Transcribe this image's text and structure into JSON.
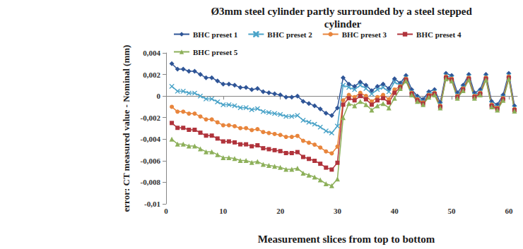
{
  "chart_data": {
    "type": "line",
    "title": "Ø3mm steel cylinder partly surrounded by a steel stepped cylinder",
    "x_label": "Measurement slices from top to bottom",
    "y_label": "error: CT measured value - Nominal (mm)",
    "x": [
      1,
      2,
      3,
      4,
      5,
      6,
      7,
      8,
      9,
      10,
      11,
      12,
      13,
      14,
      15,
      16,
      17,
      18,
      19,
      20,
      21,
      22,
      23,
      24,
      25,
      26,
      27,
      28,
      29,
      30,
      31,
      32,
      33,
      34,
      35,
      36,
      37,
      38,
      39,
      40,
      41,
      42,
      43,
      44,
      45,
      46,
      47,
      48,
      49,
      50,
      51,
      52,
      53,
      54,
      55,
      56,
      57,
      58,
      59,
      60,
      61
    ],
    "xlim": [
      0,
      61.5
    ],
    "xticks": [
      0,
      10,
      20,
      30,
      40,
      50,
      60
    ],
    "ylim": [
      -0.01,
      0.004
    ],
    "yticks": [
      {
        "value": -0.01,
        "label": "-0,01"
      },
      {
        "value": -0.008,
        "label": "-0,008"
      },
      {
        "value": -0.006,
        "label": "-0,006"
      },
      {
        "value": -0.004,
        "label": "-0,004"
      },
      {
        "value": -0.002,
        "label": "-0,002"
      },
      0,
      {
        "value": 0.002,
        "label": "0,002"
      },
      {
        "value": 0.004,
        "label": "0,004"
      }
    ],
    "grid": false,
    "legend": "top",
    "series": [
      {
        "name": "BHC preset 1",
        "color": "#2f5597",
        "marker": "diamond",
        "values": [
          0.003,
          0.0025,
          0.0025,
          0.0023,
          0.0023,
          0.002,
          0.0017,
          0.0017,
          0.0014,
          0.0011,
          0.0011,
          0.001,
          0.0008,
          0.0008,
          0.0006,
          0.0007,
          0.0004,
          0.0003,
          0.0002,
          0.0001,
          -0.0001,
          -0.0001,
          0,
          -0.0005,
          -0.0007,
          -0.0009,
          -0.0012,
          -0.0016,
          -0.0018,
          -0.0011,
          0.0017,
          0.0011,
          0.0009,
          0.0013,
          0.001,
          0.0005,
          0.0009,
          0.0011,
          0.0007,
          0.0016,
          0.0012,
          0.0019,
          0.0006,
          0,
          -0.0003,
          0.0004,
          0.0006,
          -0.0006,
          0.0021,
          0.0019,
          0.0003,
          0.001,
          0.002,
          0.0003,
          0.0006,
          0.002,
          -0.0005,
          -0.0008,
          0.0001,
          0.0021,
          -0.0009
        ]
      },
      {
        "name": "BHC preset 2",
        "color": "#4aa3c8",
        "marker": "x",
        "values": [
          0.0009,
          0.00045,
          0.00045,
          0.00027,
          0.00027,
          0,
          -0.00027,
          -0.00027,
          -0.00054,
          -0.00081,
          -0.00081,
          -0.0009,
          -0.00108,
          -0.00108,
          -0.00126,
          -0.00117,
          -0.00144,
          -0.00153,
          -0.00162,
          -0.00171,
          -0.00189,
          -0.00189,
          -0.0018,
          -0.00225,
          -0.00243,
          -0.00261,
          -0.00288,
          -0.00324,
          -0.00342,
          -0.00279,
          0.001,
          0.0008,
          0.0006,
          0.001,
          0.0007,
          0.0002,
          0.0006,
          0.0008,
          0.0004,
          0.0013,
          0.001,
          0.0017,
          0.0004,
          -0.0002,
          -0.0005,
          0.0002,
          0.0004,
          -0.0008,
          0.0019,
          0.0017,
          0.0001,
          0.0008,
          0.0018,
          0.0001,
          0.0004,
          0.0018,
          -0.0007,
          -0.001,
          -0.0001,
          0.0019,
          -0.0011
        ]
      },
      {
        "name": "BHC preset 3",
        "color": "#e8853c",
        "marker": "circle",
        "values": [
          -0.001,
          -0.00145,
          -0.00145,
          -0.00163,
          -0.00163,
          -0.0019,
          -0.00217,
          -0.00217,
          -0.00244,
          -0.00271,
          -0.00271,
          -0.0028,
          -0.00298,
          -0.00298,
          -0.00316,
          -0.00307,
          -0.00334,
          -0.00343,
          -0.00352,
          -0.00361,
          -0.00379,
          -0.00379,
          -0.0037,
          -0.00415,
          -0.00433,
          -0.00451,
          -0.00478,
          -0.00514,
          -0.00532,
          -0.00469,
          -0.0004,
          0.0001,
          -0.0001,
          0.0003,
          0,
          -0.0005,
          -0.0001,
          0.0001,
          -0.0003,
          0.0006,
          0.0009,
          0.0016,
          0.0003,
          -0.0003,
          -0.0006,
          0.0001,
          0.0003,
          -0.0009,
          0.0018,
          0.0016,
          0,
          0.0007,
          0.0017,
          0,
          0.0003,
          0.0017,
          -0.0008,
          -0.0011,
          -0.0002,
          0.0018,
          -0.0012
        ]
      },
      {
        "name": "BHC preset 4",
        "color": "#b0333b",
        "marker": "square",
        "values": [
          -0.0025,
          -0.00295,
          -0.00295,
          -0.00313,
          -0.00313,
          -0.0034,
          -0.00367,
          -0.00367,
          -0.00394,
          -0.00421,
          -0.00421,
          -0.0043,
          -0.00448,
          -0.00448,
          -0.00466,
          -0.00457,
          -0.00484,
          -0.00493,
          -0.00502,
          -0.00511,
          -0.00529,
          -0.00529,
          -0.0052,
          -0.00565,
          -0.00583,
          -0.00601,
          -0.00628,
          -0.00664,
          -0.00682,
          -0.00619,
          -0.0008,
          -0.0002,
          -0.0004,
          0,
          -0.0003,
          -0.0008,
          -0.0004,
          -0.0002,
          -0.0006,
          0.0003,
          0.0008,
          0.0015,
          0.0002,
          -0.0004,
          -0.0007,
          0,
          0.0002,
          -0.001,
          0.0017,
          0.0015,
          -0.0001,
          0.0006,
          0.0016,
          -0.0001,
          0.0002,
          0.0016,
          -0.0009,
          -0.0012,
          -0.0003,
          0.0017,
          -0.0013
        ]
      },
      {
        "name": "BHC preset 5",
        "color": "#8db05a",
        "marker": "triangle",
        "values": [
          -0.004,
          -0.00445,
          -0.00445,
          -0.00463,
          -0.00463,
          -0.0049,
          -0.00517,
          -0.00517,
          -0.00544,
          -0.00571,
          -0.00571,
          -0.0058,
          -0.00598,
          -0.00598,
          -0.00616,
          -0.00607,
          -0.00634,
          -0.00643,
          -0.00652,
          -0.00661,
          -0.00679,
          -0.00679,
          -0.0067,
          -0.00715,
          -0.00733,
          -0.00751,
          -0.00778,
          -0.00814,
          -0.00832,
          -0.00769,
          -0.002,
          -0.0007,
          -0.0009,
          -0.0005,
          -0.0008,
          -0.0013,
          -0.0009,
          -0.0007,
          -0.0011,
          -0.0002,
          0.0007,
          0.0014,
          0.0001,
          -0.0005,
          -0.0008,
          -0.0001,
          0.0001,
          -0.0011,
          0.0016,
          0.0014,
          -0.0002,
          0.0005,
          0.0015,
          -0.0002,
          0.0001,
          0.0015,
          -0.001,
          -0.0013,
          -0.0004,
          0.0016,
          -0.0014
        ]
      }
    ]
  }
}
